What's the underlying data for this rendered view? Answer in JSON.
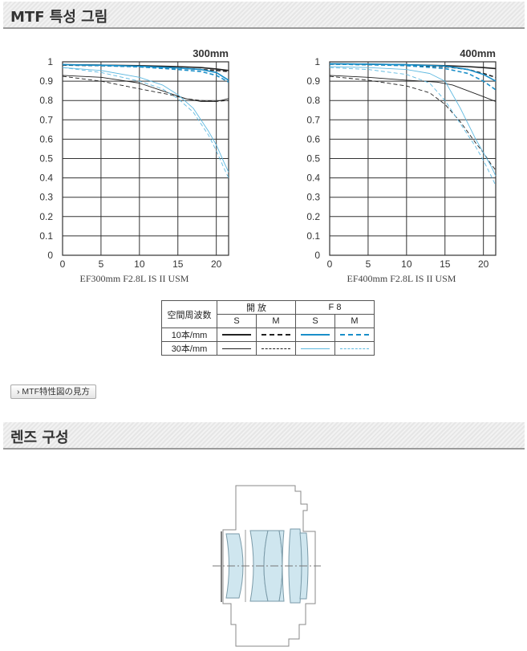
{
  "header_mtf": "MTF 특성 그림",
  "header_lens": "렌즈 구성",
  "howto_button": "MTF特性図の見方",
  "legend": {
    "spatial_label": "空間周波数",
    "open_label": "開 放",
    "f8_label": "F 8",
    "s_label": "S",
    "m_label": "M",
    "row10_label": "10本/mm",
    "row30_label": "30本/mm"
  },
  "colors": {
    "black": "#222222",
    "blue": "#1a8fc9",
    "blue_light": "#5fb9e0"
  },
  "chart_data": [
    {
      "type": "line",
      "title": "300mm",
      "xlabel": "EF300mm F2.8L IS II USM",
      "ylabel": "",
      "xlim": [
        0,
        21.6
      ],
      "ylim": [
        0,
        1
      ],
      "x_ticks": [
        0,
        5,
        10,
        15,
        20
      ],
      "y_ticks": [
        0,
        0.1,
        0.2,
        0.3,
        0.4,
        0.5,
        0.6,
        0.7,
        0.8,
        0.9,
        1
      ],
      "y_tick_labels": [
        "0",
        "0.1",
        "0.2",
        "0.3",
        "0.4",
        "0.5",
        "0.6",
        "0.7",
        "0.8",
        "0.9",
        "1"
      ],
      "grid": true,
      "series": [
        {
          "style": "open-10-S",
          "color": "black",
          "dash": false,
          "width": 1.6,
          "points": [
            [
              0,
              0.985
            ],
            [
              5,
              0.983
            ],
            [
              10,
              0.98
            ],
            [
              15,
              0.975
            ],
            [
              18,
              0.97
            ],
            [
              20,
              0.963
            ],
            [
              21.6,
              0.955
            ]
          ]
        },
        {
          "style": "open-10-M",
          "color": "black",
          "dash": true,
          "width": 1.6,
          "points": [
            [
              0,
              0.983
            ],
            [
              5,
              0.98
            ],
            [
              10,
              0.975
            ],
            [
              15,
              0.968
            ],
            [
              18,
              0.96
            ],
            [
              20,
              0.955
            ],
            [
              21.6,
              0.95
            ]
          ]
        },
        {
          "style": "f8-10-S",
          "color": "blue",
          "dash": false,
          "width": 1.6,
          "points": [
            [
              0,
              0.985
            ],
            [
              5,
              0.982
            ],
            [
              10,
              0.977
            ],
            [
              15,
              0.968
            ],
            [
              18,
              0.96
            ],
            [
              20,
              0.945
            ],
            [
              21.6,
              0.905
            ]
          ]
        },
        {
          "style": "f8-10-M",
          "color": "blue",
          "dash": true,
          "width": 1.6,
          "points": [
            [
              0,
              0.985
            ],
            [
              5,
              0.98
            ],
            [
              10,
              0.974
            ],
            [
              15,
              0.96
            ],
            [
              18,
              0.95
            ],
            [
              20,
              0.93
            ],
            [
              21.6,
              0.895
            ]
          ]
        },
        {
          "style": "open-30-S",
          "color": "black",
          "dash": false,
          "width": 0.9,
          "points": [
            [
              0,
              0.93
            ],
            [
              5,
              0.92
            ],
            [
              10,
              0.89
            ],
            [
              13,
              0.85
            ],
            [
              16,
              0.81
            ],
            [
              18,
              0.795
            ],
            [
              20,
              0.795
            ],
            [
              21.6,
              0.81
            ]
          ]
        },
        {
          "style": "open-30-M",
          "color": "black",
          "dash": true,
          "width": 0.9,
          "points": [
            [
              0,
              0.925
            ],
            [
              5,
              0.9
            ],
            [
              10,
              0.86
            ],
            [
              14,
              0.83
            ],
            [
              16,
              0.81
            ],
            [
              18,
              0.8
            ],
            [
              20,
              0.795
            ],
            [
              21.6,
              0.8
            ]
          ]
        },
        {
          "style": "f8-30-S",
          "color": "blue_light",
          "dash": false,
          "width": 0.9,
          "points": [
            [
              0,
              0.97
            ],
            [
              5,
              0.955
            ],
            [
              10,
              0.92
            ],
            [
              13,
              0.88
            ],
            [
              15,
              0.83
            ],
            [
              17,
              0.76
            ],
            [
              19,
              0.64
            ],
            [
              20,
              0.57
            ],
            [
              21,
              0.48
            ],
            [
              21.6,
              0.43
            ]
          ]
        },
        {
          "style": "f8-30-M",
          "color": "blue_light",
          "dash": true,
          "width": 0.9,
          "points": [
            [
              0,
              0.97
            ],
            [
              5,
              0.945
            ],
            [
              10,
              0.9
            ],
            [
              13,
              0.86
            ],
            [
              15,
              0.81
            ],
            [
              17,
              0.74
            ],
            [
              19,
              0.62
            ],
            [
              20,
              0.54
            ],
            [
              21,
              0.45
            ],
            [
              21.6,
              0.4
            ]
          ]
        }
      ]
    },
    {
      "type": "line",
      "title": "400mm",
      "xlabel": "EF400mm F2.8L IS II USM",
      "ylabel": "",
      "xlim": [
        0,
        21.6
      ],
      "ylim": [
        0,
        1
      ],
      "x_ticks": [
        0,
        5,
        10,
        15,
        20
      ],
      "y_ticks": [
        0,
        0.1,
        0.2,
        0.3,
        0.4,
        0.5,
        0.6,
        0.7,
        0.8,
        0.9,
        1
      ],
      "y_tick_labels": [
        "0",
        "0.1",
        "0.2",
        "0.3",
        "0.4",
        "0.5",
        "0.6",
        "0.7",
        "0.8",
        "0.9",
        "1"
      ],
      "grid": true,
      "series": [
        {
          "style": "open-10-S",
          "color": "black",
          "dash": false,
          "width": 1.6,
          "points": [
            [
              0,
              0.99
            ],
            [
              5,
              0.988
            ],
            [
              10,
              0.985
            ],
            [
              15,
              0.98
            ],
            [
              18,
              0.975
            ],
            [
              20,
              0.97
            ],
            [
              21.6,
              0.965
            ]
          ]
        },
        {
          "style": "open-10-M",
          "color": "black",
          "dash": true,
          "width": 1.6,
          "points": [
            [
              0,
              0.988
            ],
            [
              5,
              0.985
            ],
            [
              10,
              0.982
            ],
            [
              15,
              0.975
            ],
            [
              18,
              0.96
            ],
            [
              20,
              0.94
            ],
            [
              21.6,
              0.92
            ]
          ]
        },
        {
          "style": "f8-10-S",
          "color": "blue",
          "dash": false,
          "width": 1.6,
          "points": [
            [
              0,
              0.99
            ],
            [
              5,
              0.988
            ],
            [
              10,
              0.985
            ],
            [
              15,
              0.978
            ],
            [
              18,
              0.96
            ],
            [
              20,
              0.935
            ],
            [
              21.6,
              0.9
            ]
          ]
        },
        {
          "style": "f8-10-M",
          "color": "blue",
          "dash": true,
          "width": 1.6,
          "points": [
            [
              0,
              0.988
            ],
            [
              5,
              0.985
            ],
            [
              10,
              0.98
            ],
            [
              15,
              0.965
            ],
            [
              18,
              0.94
            ],
            [
              20,
              0.9
            ],
            [
              21.6,
              0.855
            ]
          ]
        },
        {
          "style": "open-30-S",
          "color": "black",
          "dash": false,
          "width": 0.9,
          "points": [
            [
              0,
              0.93
            ],
            [
              5,
              0.92
            ],
            [
              10,
              0.905
            ],
            [
              14,
              0.895
            ],
            [
              16,
              0.88
            ],
            [
              18,
              0.85
            ],
            [
              20,
              0.82
            ],
            [
              21.6,
              0.795
            ]
          ]
        },
        {
          "style": "open-30-M",
          "color": "black",
          "dash": true,
          "width": 0.9,
          "points": [
            [
              0,
              0.925
            ],
            [
              5,
              0.905
            ],
            [
              10,
              0.875
            ],
            [
              13,
              0.84
            ],
            [
              15,
              0.78
            ],
            [
              17,
              0.69
            ],
            [
              19,
              0.58
            ],
            [
              20,
              0.53
            ],
            [
              21,
              0.47
            ],
            [
              21.6,
              0.44
            ]
          ]
        },
        {
          "style": "f8-30-S",
          "color": "blue_light",
          "dash": false,
          "width": 0.9,
          "points": [
            [
              0,
              0.975
            ],
            [
              5,
              0.97
            ],
            [
              10,
              0.96
            ],
            [
              13,
              0.94
            ],
            [
              15,
              0.9
            ],
            [
              17,
              0.76
            ],
            [
              19,
              0.6
            ],
            [
              20,
              0.53
            ],
            [
              21,
              0.46
            ],
            [
              21.6,
              0.41
            ]
          ]
        },
        {
          "style": "f8-30-M",
          "color": "blue_light",
          "dash": true,
          "width": 0.9,
          "points": [
            [
              0,
              0.97
            ],
            [
              5,
              0.96
            ],
            [
              10,
              0.935
            ],
            [
              13,
              0.89
            ],
            [
              15,
              0.8
            ],
            [
              17,
              0.68
            ],
            [
              19,
              0.56
            ],
            [
              20,
              0.49
            ],
            [
              21,
              0.41
            ],
            [
              21.6,
              0.36
            ]
          ]
        }
      ]
    }
  ]
}
